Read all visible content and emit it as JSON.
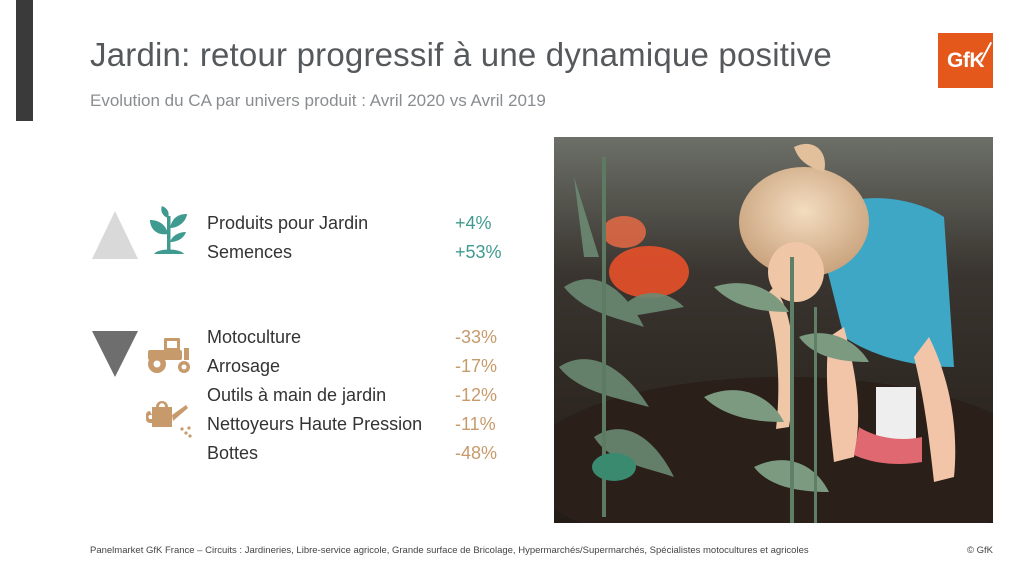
{
  "header": {
    "title": "Jardin: retour progressif à une dynamique positive",
    "subtitle": "Evolution du CA par univers produit : Avril 2020 vs Avril 2019",
    "logo_text": "GfK"
  },
  "positive": {
    "rows": [
      {
        "label": "Produits pour Jardin",
        "value": "+4%"
      },
      {
        "label": "Semences",
        "value": "+53%"
      }
    ]
  },
  "negative": {
    "rows": [
      {
        "label": "Motoculture",
        "value": "-33%"
      },
      {
        "label": "Arrosage",
        "value": "-17%"
      },
      {
        "label": "Outils à main de jardin",
        "value": "-12%"
      },
      {
        "label": "Nettoyeurs Haute Pression",
        "value": "-11%"
      },
      {
        "label": "Bottes",
        "value": "-48%"
      }
    ]
  },
  "footer": {
    "source": "Panelmarket GfK France – Circuits : Jardineries, Libre-service agricole, Grande surface de Bricolage, Hypermarchés/Supermarchés, Spécialistes motocultures et agricoles",
    "copyright": "© GfK"
  },
  "colors": {
    "positive": "#3f9a8f",
    "negative": "#c79a6c",
    "brand": "#e4581b",
    "dark_bar": "#3a3a3a"
  },
  "icons": [
    "plant-icon",
    "tractor-icon",
    "watering-can-icon",
    "triangle-up-icon",
    "triangle-down-icon"
  ]
}
